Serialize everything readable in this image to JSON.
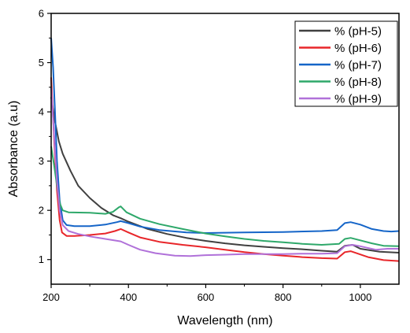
{
  "chart_data": {
    "type": "line",
    "xlabel": "Wavelength (nm)",
    "ylabel": "Absorbance (a.u)",
    "xlim": [
      200,
      1100
    ],
    "ylim": [
      0.5,
      6
    ],
    "x_ticks": [
      200,
      400,
      600,
      800,
      1000
    ],
    "y_ticks": [
      1,
      2,
      3,
      4,
      5,
      6
    ],
    "grid": false,
    "legend_position": "top-right",
    "series": [
      {
        "name": "% (pH-5)",
        "color": "#404040",
        "points": [
          [
            200,
            4.3
          ],
          [
            210,
            3.8
          ],
          [
            220,
            3.4
          ],
          [
            230,
            3.15
          ],
          [
            250,
            2.8
          ],
          [
            270,
            2.5
          ],
          [
            300,
            2.25
          ],
          [
            330,
            2.05
          ],
          [
            360,
            1.9
          ],
          [
            380,
            1.84
          ],
          [
            400,
            1.77
          ],
          [
            450,
            1.62
          ],
          [
            500,
            1.52
          ],
          [
            550,
            1.44
          ],
          [
            600,
            1.38
          ],
          [
            650,
            1.33
          ],
          [
            700,
            1.29
          ],
          [
            750,
            1.26
          ],
          [
            800,
            1.23
          ],
          [
            850,
            1.21
          ],
          [
            900,
            1.18
          ],
          [
            940,
            1.16
          ],
          [
            960,
            1.28
          ],
          [
            980,
            1.3
          ],
          [
            1000,
            1.22
          ],
          [
            1050,
            1.16
          ],
          [
            1100,
            1.14
          ]
        ]
      },
      {
        "name": "% (pH-6)",
        "color": "#e8262a",
        "points": [
          [
            200,
            4.7
          ],
          [
            208,
            3.4
          ],
          [
            215,
            2.4
          ],
          [
            222,
            1.8
          ],
          [
            228,
            1.55
          ],
          [
            240,
            1.48
          ],
          [
            260,
            1.48
          ],
          [
            300,
            1.5
          ],
          [
            340,
            1.53
          ],
          [
            365,
            1.58
          ],
          [
            380,
            1.62
          ],
          [
            400,
            1.55
          ],
          [
            430,
            1.45
          ],
          [
            480,
            1.36
          ],
          [
            540,
            1.3
          ],
          [
            600,
            1.25
          ],
          [
            650,
            1.2
          ],
          [
            700,
            1.15
          ],
          [
            750,
            1.11
          ],
          [
            800,
            1.08
          ],
          [
            850,
            1.05
          ],
          [
            900,
            1.03
          ],
          [
            940,
            1.02
          ],
          [
            960,
            1.15
          ],
          [
            975,
            1.17
          ],
          [
            990,
            1.13
          ],
          [
            1020,
            1.05
          ],
          [
            1060,
            0.99
          ],
          [
            1100,
            0.97
          ]
        ]
      },
      {
        "name": "% (pH-7)",
        "color": "#1565c8",
        "points": [
          [
            200,
            5.5
          ],
          [
            205,
            4.9
          ],
          [
            210,
            4.0
          ],
          [
            215,
            3.0
          ],
          [
            222,
            2.2
          ],
          [
            230,
            1.8
          ],
          [
            240,
            1.7
          ],
          [
            260,
            1.68
          ],
          [
            300,
            1.68
          ],
          [
            340,
            1.71
          ],
          [
            370,
            1.76
          ],
          [
            380,
            1.78
          ],
          [
            400,
            1.74
          ],
          [
            430,
            1.67
          ],
          [
            480,
            1.6
          ],
          [
            550,
            1.55
          ],
          [
            600,
            1.54
          ],
          [
            700,
            1.55
          ],
          [
            800,
            1.56
          ],
          [
            900,
            1.58
          ],
          [
            940,
            1.6
          ],
          [
            960,
            1.74
          ],
          [
            975,
            1.76
          ],
          [
            1000,
            1.71
          ],
          [
            1030,
            1.62
          ],
          [
            1060,
            1.58
          ],
          [
            1080,
            1.57
          ],
          [
            1100,
            1.58
          ]
        ]
      },
      {
        "name": "% (pH-8)",
        "color": "#2ea86a",
        "points": [
          [
            200,
            3.3
          ],
          [
            208,
            2.9
          ],
          [
            215,
            2.5
          ],
          [
            222,
            2.15
          ],
          [
            230,
            2.0
          ],
          [
            245,
            1.96
          ],
          [
            300,
            1.95
          ],
          [
            340,
            1.93
          ],
          [
            360,
            1.97
          ],
          [
            375,
            2.06
          ],
          [
            380,
            2.08
          ],
          [
            395,
            1.96
          ],
          [
            430,
            1.83
          ],
          [
            480,
            1.72
          ],
          [
            540,
            1.62
          ],
          [
            600,
            1.53
          ],
          [
            650,
            1.47
          ],
          [
            700,
            1.42
          ],
          [
            750,
            1.38
          ],
          [
            800,
            1.35
          ],
          [
            850,
            1.32
          ],
          [
            900,
            1.3
          ],
          [
            945,
            1.32
          ],
          [
            960,
            1.42
          ],
          [
            975,
            1.44
          ],
          [
            995,
            1.4
          ],
          [
            1030,
            1.33
          ],
          [
            1060,
            1.28
          ],
          [
            1100,
            1.27
          ]
        ]
      },
      {
        "name": "% (pH-9)",
        "color": "#b071d9",
        "points": [
          [
            200,
            4.5
          ],
          [
            208,
            3.5
          ],
          [
            215,
            2.6
          ],
          [
            222,
            2.0
          ],
          [
            230,
            1.7
          ],
          [
            245,
            1.58
          ],
          [
            270,
            1.52
          ],
          [
            300,
            1.47
          ],
          [
            340,
            1.42
          ],
          [
            380,
            1.37
          ],
          [
            400,
            1.3
          ],
          [
            430,
            1.2
          ],
          [
            470,
            1.13
          ],
          [
            520,
            1.08
          ],
          [
            560,
            1.07
          ],
          [
            600,
            1.09
          ],
          [
            650,
            1.1
          ],
          [
            700,
            1.11
          ],
          [
            750,
            1.11
          ],
          [
            800,
            1.11
          ],
          [
            850,
            1.12
          ],
          [
            900,
            1.12
          ],
          [
            940,
            1.13
          ],
          [
            960,
            1.27
          ],
          [
            980,
            1.3
          ],
          [
            1000,
            1.27
          ],
          [
            1040,
            1.2
          ],
          [
            1070,
            1.22
          ],
          [
            1100,
            1.22
          ]
        ]
      }
    ]
  }
}
